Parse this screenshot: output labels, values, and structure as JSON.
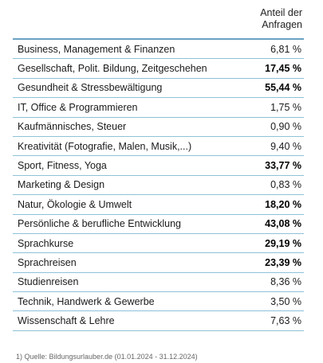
{
  "header": {
    "line1": "Anteil der",
    "line2": "Anfragen"
  },
  "rows": [
    {
      "label": "Business, Management & Finanzen",
      "value": "6,81 %",
      "bold": false
    },
    {
      "label": "Gesellschaft, Polit. Bildung, Zeitgeschehen",
      "value": "17,45 %",
      "bold": true
    },
    {
      "label": "Gesundheit & Stressbewältigung",
      "value": "55,44 %",
      "bold": true
    },
    {
      "label": "IT, Office & Programmieren",
      "value": "1,75 %",
      "bold": false
    },
    {
      "label": "Kaufmännisches, Steuer",
      "value": "0,90 %",
      "bold": false
    },
    {
      "label": "Kreativität (Fotografie, Malen, Musik,...)",
      "value": "9,40 %",
      "bold": false
    },
    {
      "label": "Sport, Fitness, Yoga",
      "value": "33,77 %",
      "bold": true
    },
    {
      "label": "Marketing & Design",
      "value": "0,83 %",
      "bold": false
    },
    {
      "label": "Natur, Ökologie & Umwelt",
      "value": "18,20 %",
      "bold": true
    },
    {
      "label": "Persönliche & berufliche Entwicklung",
      "value": "43,08 %",
      "bold": true
    },
    {
      "label": "Sprachkurse",
      "value": "29,19 %",
      "bold": true
    },
    {
      "label": "Sprachreisen",
      "value": "23,39 %",
      "bold": true
    },
    {
      "label": "Studienreisen",
      "value": "8,36 %",
      "bold": false
    },
    {
      "label": "Technik, Handwerk & Gewerbe",
      "value": "3,50 %",
      "bold": false
    },
    {
      "label": "Wissenschaft & Lehre",
      "value": "7,63 %",
      "bold": false
    }
  ],
  "footnote": "1) Quelle: Bildungsurlauber.de (01.01.2024 - 31.12.2024)"
}
